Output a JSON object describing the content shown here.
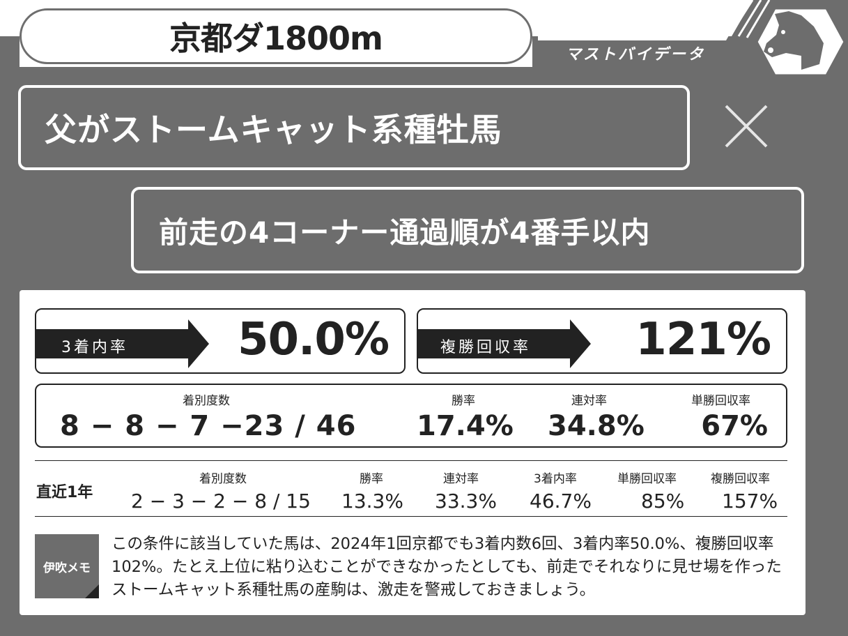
{
  "header": {
    "course": "京都ダ1800m",
    "brand": "マストバイデータ"
  },
  "conditions": {
    "primary": "父がストームキャット系種牡馬",
    "secondary": "前走の4コーナー通過順が4番手以内",
    "operator": "×"
  },
  "highlights": [
    {
      "label": "3着内率",
      "value": "50.0%"
    },
    {
      "label": "複勝回収率",
      "value": "121%"
    }
  ],
  "overall": {
    "record_label": "着別度数",
    "record": "8 − 8 − 7 −23 / 46",
    "win_label": "勝率",
    "win": "17.4%",
    "quinella_label": "連対率",
    "quinella": "34.8%",
    "win_return_label": "単勝回収率",
    "win_return": "67%"
  },
  "recent": {
    "title": "直近1年",
    "record_label": "着別度数",
    "record": "2 − 3 − 2 − 8 / 15",
    "win_label": "勝率",
    "win": "13.3%",
    "quinella_label": "連対率",
    "quinella": "33.3%",
    "place_label": "3着内率",
    "place": "46.7%",
    "win_return_label": "単勝回収率",
    "win_return": "85%",
    "place_return_label": "複勝回収率",
    "place_return": "157%"
  },
  "memo": {
    "label": "伊吹メモ",
    "text": "この条件に該当していた馬は、2024年1回京都でも3着内数6回、3着内率50.0%、複勝回収率102%。たとえ上位に粘り込むことができなかったとしても、前走でそれなりに見せ場を作ったストームキャット系種牡馬の産駒は、激走を警戒しておきましょう。"
  },
  "colors": {
    "frame": "#6d6d6d",
    "dark": "#222222",
    "white": "#ffffff"
  }
}
